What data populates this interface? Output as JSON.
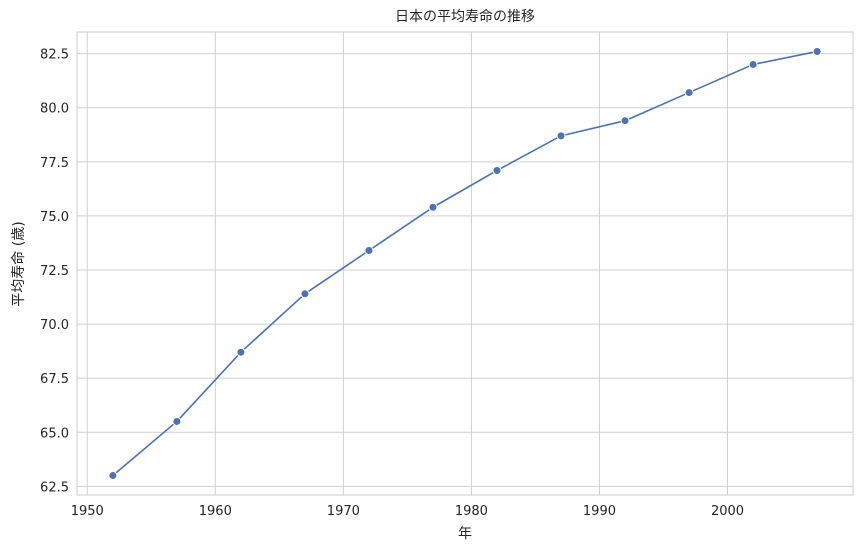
{
  "chart_data": {
    "type": "line",
    "title": "日本の平均寿命の推移",
    "xlabel": "年",
    "ylabel": "平均寿命 (歳)",
    "xlim": [
      1949.2,
      2009.8
    ],
    "ylim": [
      62.1,
      83.5
    ],
    "xticks": [
      1950,
      1960,
      1970,
      1980,
      1990,
      2000
    ],
    "yticks": [
      62.5,
      65.0,
      67.5,
      70.0,
      72.5,
      75.0,
      77.5,
      80.0,
      82.5
    ],
    "xtick_labels": [
      "1950",
      "1960",
      "1970",
      "1980",
      "1990",
      "2000"
    ],
    "ytick_labels": [
      "62.5",
      "65.0",
      "67.5",
      "70.0",
      "72.5",
      "75.0",
      "77.5",
      "80.0",
      "82.5"
    ],
    "grid": true,
    "series": [
      {
        "color": "#4c72b0",
        "marker": "circle",
        "x": [
          1952,
          1957,
          1962,
          1967,
          1972,
          1977,
          1982,
          1987,
          1992,
          1997,
          2002,
          2007
        ],
        "y": [
          63.0,
          65.5,
          68.7,
          71.4,
          73.4,
          75.4,
          77.1,
          78.7,
          79.4,
          80.7,
          82.0,
          82.6
        ]
      }
    ]
  }
}
